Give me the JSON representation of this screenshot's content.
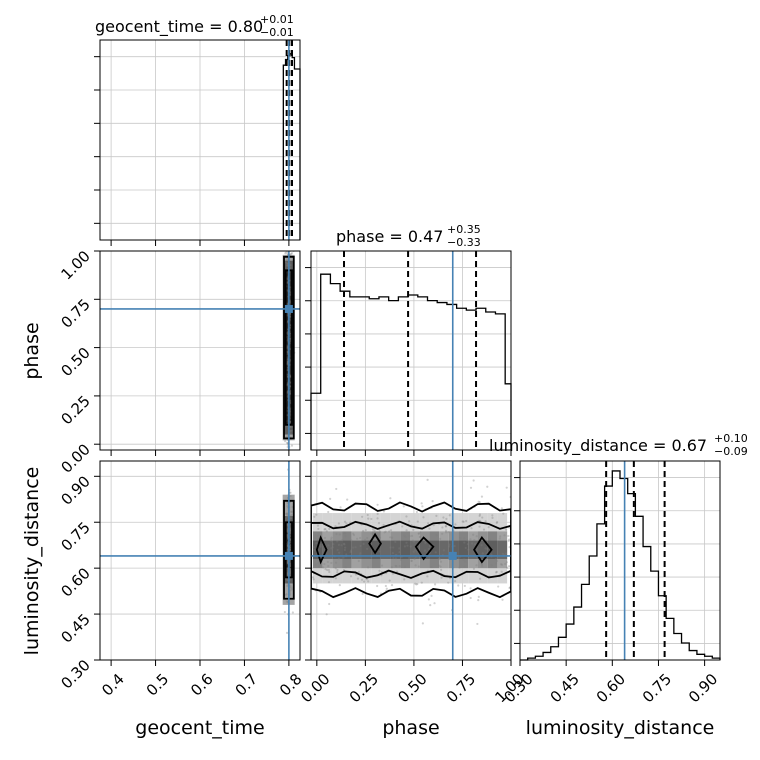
{
  "chart_data": {
    "type": "corner",
    "parameters": [
      {
        "name": "geocent_time",
        "xlabel": "geocent_time",
        "title": {
          "prefix": "geocent_time = 0.80",
          "plus": "+0.01",
          "minus": "−0.01"
        },
        "range": [
          0.375,
          0.825
        ],
        "ticks": [
          0.4,
          0.5,
          0.6,
          0.7,
          0.8
        ],
        "tick_labels": [
          "0.4",
          "0.5",
          "0.6",
          "0.7",
          "0.8"
        ],
        "quantiles": [
          0.795,
          0.801,
          0.807
        ],
        "truth": 0.8,
        "hist_edges": [
          0.7875,
          0.7925,
          0.7975,
          0.8025,
          0.8075,
          0.8125,
          0.825
        ],
        "hist_counts": [
          0.92,
          0.95,
          0.97,
          0.98,
          0.96,
          0.9
        ]
      },
      {
        "name": "phase",
        "xlabel": "phase",
        "ylabel": "phase",
        "title": {
          "prefix": "phase = 0.47",
          "plus": "+0.35",
          "minus": "−0.33"
        },
        "range": [
          -0.03,
          1.0
        ],
        "ticks": [
          0.0,
          0.25,
          0.5,
          0.75,
          1.0
        ],
        "tick_labels": [
          "0.00",
          "0.25",
          "0.50",
          "0.75",
          "1.00"
        ],
        "quantiles": [
          0.14,
          0.47,
          0.82
        ],
        "truth": 0.7,
        "hist_edges": [
          -0.03,
          0.02,
          0.07,
          0.12,
          0.17,
          0.22,
          0.27,
          0.32,
          0.37,
          0.42,
          0.47,
          0.52,
          0.57,
          0.62,
          0.67,
          0.72,
          0.77,
          0.82,
          0.87,
          0.92,
          0.97,
          1.0
        ],
        "hist_counts": [
          0.3,
          0.93,
          0.88,
          0.84,
          0.81,
          0.81,
          0.8,
          0.81,
          0.79,
          0.81,
          0.82,
          0.81,
          0.79,
          0.78,
          0.77,
          0.75,
          0.74,
          0.75,
          0.73,
          0.72,
          0.35
        ]
      },
      {
        "name": "luminosity_distance",
        "xlabel": "luminosity_distance",
        "ylabel": "luminosity_distance",
        "title": {
          "prefix": "luminosity_distance = 0.67",
          "plus": "+0.10",
          "minus": "−0.09"
        },
        "range": [
          0.3,
          0.95
        ],
        "ticks": [
          0.3,
          0.45,
          0.6,
          0.75,
          0.9
        ],
        "tick_labels": [
          "0.30",
          "0.45",
          "0.60",
          "0.75",
          "0.90"
        ],
        "quantiles": [
          0.58,
          0.67,
          0.77
        ],
        "truth": 0.64,
        "hist_edges": [
          0.3,
          0.325,
          0.35,
          0.375,
          0.4,
          0.425,
          0.45,
          0.475,
          0.5,
          0.525,
          0.55,
          0.575,
          0.6,
          0.625,
          0.65,
          0.675,
          0.7,
          0.725,
          0.75,
          0.775,
          0.8,
          0.825,
          0.85,
          0.875,
          0.9,
          0.925,
          0.95
        ],
        "hist_counts": [
          0.0,
          0.01,
          0.02,
          0.04,
          0.07,
          0.12,
          0.19,
          0.28,
          0.4,
          0.55,
          0.72,
          0.92,
          1.0,
          0.96,
          0.88,
          0.76,
          0.6,
          0.47,
          0.34,
          0.22,
          0.14,
          0.09,
          0.05,
          0.03,
          0.02,
          0.01
        ]
      }
    ],
    "truths": {
      "geocent_time": 0.8,
      "phase": 0.7,
      "luminosity_distance": 0.64
    },
    "colors": {
      "truth": "#4682b4",
      "hist": "#000000",
      "grid": "#c8c8c8",
      "density_dark": "#3a3a3a",
      "density_light": "#e8e8e8",
      "samples": "#7f7f7f"
    },
    "grid": true
  }
}
